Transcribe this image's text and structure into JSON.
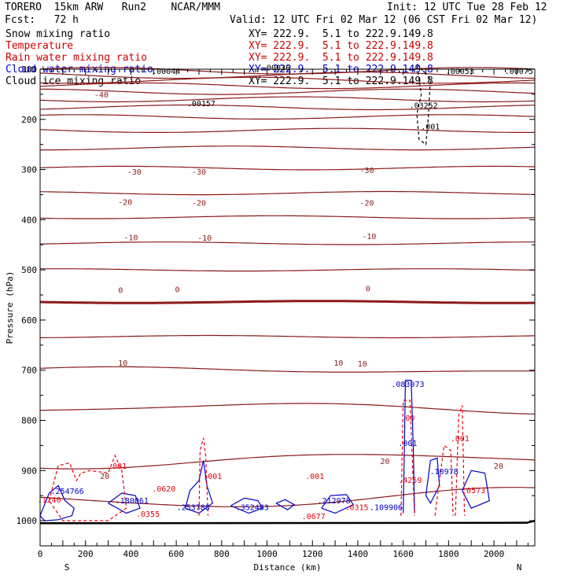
{
  "header": {
    "model": "TORERO  15km ARW   Run2    NCAR/MMM",
    "init": "Init: 12 UTC Tue 28 Feb 12",
    "fcst": "Fcst:   72 h",
    "valid": "Valid: 12 UTC Fri 02 Mar 12 (06 CST Fri 02 Mar 12)",
    "xy": "XY= 222.9.  5.1 to 222.9.149.8"
  },
  "fields": [
    {
      "name": "Snow mixing ratio",
      "color": "#000000"
    },
    {
      "name": "Temperature",
      "color": "#cc0000"
    },
    {
      "name": "Rain water mixing ratio",
      "color": "#cc0000"
    },
    {
      "name": "Cloud water mixing ratio",
      "color": "#0000cc"
    },
    {
      "name": "Cloud ice mixing ratio",
      "color": "#000000"
    }
  ],
  "colors": {
    "temperature": "#8b1a1a",
    "rain": "#e8000b",
    "cloud_water": "#0000cc",
    "ice": "#000000"
  },
  "chart_data": {
    "type": "line",
    "title": "",
    "xlabel": "Distance (km)",
    "ylabel": "Pressure (hPa)",
    "xlim": [
      0,
      2180
    ],
    "ylim": [
      1050,
      100
    ],
    "xticks": [
      0,
      200,
      400,
      600,
      800,
      1000,
      1200,
      1400,
      1600,
      1800,
      2000
    ],
    "yticks": [
      100,
      200,
      300,
      400,
      500,
      600,
      700,
      800,
      900,
      1000
    ],
    "endpoints": {
      "left": "S",
      "right": "N"
    },
    "temperature_isotherms_degC": [
      -75,
      -70,
      -65,
      -60,
      -55,
      -50,
      -45,
      -40,
      -35,
      -30,
      -25,
      -20,
      -15,
      -10,
      -5,
      0,
      5,
      10,
      15,
      20,
      25
    ],
    "temperature_labels": [
      {
        "x": 270,
        "p": 152,
        "text": "-40"
      },
      {
        "x": 415,
        "p": 305,
        "text": "-30"
      },
      {
        "x": 700,
        "p": 305,
        "text": "-30"
      },
      {
        "x": 1440,
        "p": 302,
        "text": "-30"
      },
      {
        "x": 375,
        "p": 366,
        "text": "-20"
      },
      {
        "x": 700,
        "p": 367,
        "text": "-20"
      },
      {
        "x": 1440,
        "p": 367,
        "text": "-20"
      },
      {
        "x": 400,
        "p": 436,
        "text": "-10"
      },
      {
        "x": 725,
        "p": 437,
        "text": "-10"
      },
      {
        "x": 1450,
        "p": 434,
        "text": "-10"
      },
      {
        "x": 355,
        "p": 541,
        "text": "0"
      },
      {
        "x": 605,
        "p": 540,
        "text": "0"
      },
      {
        "x": 1445,
        "p": 538,
        "text": "0"
      },
      {
        "x": 365,
        "p": 686,
        "text": "10"
      },
      {
        "x": 1315,
        "p": 686,
        "text": "10"
      },
      {
        "x": 1420,
        "p": 688,
        "text": "10"
      },
      {
        "x": 1520,
        "p": 882,
        "text": "20"
      },
      {
        "x": 2020,
        "p": 892,
        "text": "20"
      },
      {
        "x": 285,
        "p": 912,
        "text": "20"
      }
    ],
    "annotations": [
      {
        "x": 555,
        "p": 105,
        "text": ".00044",
        "color": "#000000"
      },
      {
        "x": 1040,
        "p": 98,
        "text": ".00036",
        "color": "#000000"
      },
      {
        "x": 1850,
        "p": 105,
        "text": ".00053",
        "color": "#000000"
      },
      {
        "x": 2110,
        "p": 105,
        "text": ".00075",
        "color": "#000000"
      },
      {
        "x": 710,
        "p": 169,
        "text": ".00157",
        "color": "#000000"
      },
      {
        "x": 1690,
        "p": 173,
        "text": ".03252",
        "color": "#000000"
      },
      {
        "x": 1720,
        "p": 215,
        "text": ".001",
        "color": "#000000"
      },
      {
        "x": 1620,
        "p": 729,
        "text": ".083073",
        "color": "#0000cc"
      },
      {
        "x": 1620,
        "p": 796,
        "text": ".00",
        "color": "#e8000b"
      },
      {
        "x": 1620,
        "p": 846,
        "text": ".001",
        "color": "#0000cc"
      },
      {
        "x": 1850,
        "p": 837,
        "text": ".001",
        "color": "#e8000b"
      },
      {
        "x": 340,
        "p": 892,
        "text": ".001",
        "color": "#e8000b"
      },
      {
        "x": 760,
        "p": 912,
        "text": ".001",
        "color": "#e8000b"
      },
      {
        "x": 1210,
        "p": 912,
        "text": ".001",
        "color": "#e8000b"
      },
      {
        "x": 1780,
        "p": 903,
        "text": ".10978",
        "color": "#0000cc"
      },
      {
        "x": 1630,
        "p": 920,
        "text": ".4259",
        "color": "#e8000b"
      },
      {
        "x": 1910,
        "p": 940,
        "text": ".0573",
        "color": "#e8000b"
      },
      {
        "x": 545,
        "p": 937,
        "text": ".0620",
        "color": "#e8000b"
      },
      {
        "x": 120,
        "p": 942,
        "text": ".254766",
        "color": "#0000cc"
      },
      {
        "x": 40,
        "p": 959,
        "text": ".1240",
        "color": "#e8000b"
      },
      {
        "x": 405,
        "p": 961,
        "text": ".180061",
        "color": "#0000cc"
      },
      {
        "x": 1295,
        "p": 961,
        "text": ".212978",
        "color": "#0000cc"
      },
      {
        "x": 675,
        "p": 974,
        "text": ".253788",
        "color": "#0000cc"
      },
      {
        "x": 935,
        "p": 974,
        "text": ".352483",
        "color": "#0000cc"
      },
      {
        "x": 1395,
        "p": 974,
        "text": ".0315",
        "color": "#e8000b"
      },
      {
        "x": 1525,
        "p": 974,
        "text": ".109906",
        "color": "#0000cc"
      },
      {
        "x": 475,
        "p": 987,
        "text": ".0355",
        "color": "#e8000b"
      },
      {
        "x": 1205,
        "p": 992,
        "text": ".0677",
        "color": "#e8000b"
      }
    ]
  }
}
